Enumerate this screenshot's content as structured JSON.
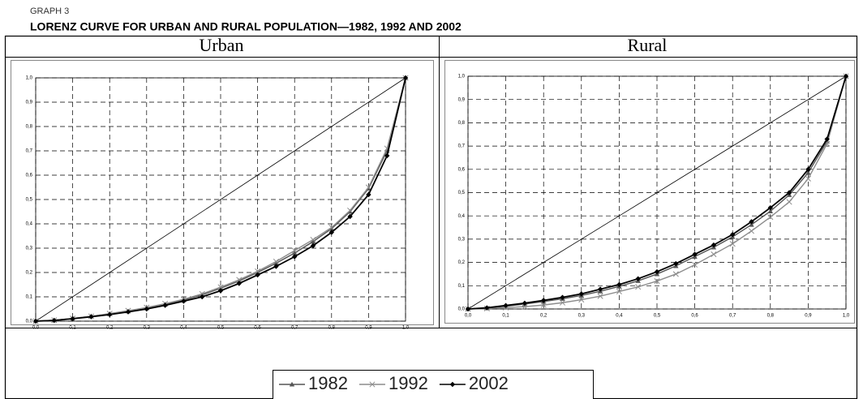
{
  "header": {
    "label": "GRAPH 3",
    "title": "LORENZ CURVE FOR URBAN AND RURAL POPULATION—1982, 1992 AND 2002"
  },
  "chart_data": [
    {
      "type": "line",
      "title": "Urban",
      "grid": true,
      "x": [
        0,
        0.05,
        0.1,
        0.15,
        0.2,
        0.25,
        0.3,
        0.35,
        0.4,
        0.45,
        0.5,
        0.55,
        0.6,
        0.65,
        0.7,
        0.75,
        0.8,
        0.85,
        0.9,
        0.95,
        1
      ],
      "xlim": [
        0,
        1
      ],
      "ylim": [
        0,
        1
      ],
      "xticks": [
        {
          "value": 0,
          "label": "0,0"
        },
        {
          "value": 0.1,
          "label": "0,1"
        },
        {
          "value": 0.2,
          "label": "0,2"
        },
        {
          "value": 0.3,
          "label": "0,3"
        },
        {
          "value": 0.4,
          "label": "0,4"
        },
        {
          "value": 0.5,
          "label": "0,5"
        },
        {
          "value": 0.6,
          "label": "0,6"
        },
        {
          "value": 0.7,
          "label": "0,7"
        },
        {
          "value": 0.8,
          "label": "0,8"
        },
        {
          "value": 0.9,
          "label": "0,9"
        },
        {
          "value": 1,
          "label": "1,0"
        }
      ],
      "yticks": [
        {
          "value": 0,
          "label": "0,0"
        },
        {
          "value": 0.1,
          "label": "0,1"
        },
        {
          "value": 0.2,
          "label": "0,2"
        },
        {
          "value": 0.3,
          "label": "0,3"
        },
        {
          "value": 0.4,
          "label": "0,4"
        },
        {
          "value": 0.5,
          "label": "0,5"
        },
        {
          "value": 0.6,
          "label": "0,6"
        },
        {
          "value": 0.7,
          "label": "0,7"
        },
        {
          "value": 0.8,
          "label": "0,8"
        },
        {
          "value": 0.9,
          "label": "0,9"
        },
        {
          "value": 1,
          "label": "1,0"
        }
      ],
      "series": [
        {
          "name": "1982",
          "color": "#555555",
          "marker": "triangle",
          "values": [
            0,
            0.004,
            0.011,
            0.02,
            0.03,
            0.041,
            0.054,
            0.069,
            0.087,
            0.108,
            0.135,
            0.165,
            0.2,
            0.238,
            0.28,
            0.327,
            0.38,
            0.45,
            0.545,
            0.7,
            1
          ]
        },
        {
          "name": "1992",
          "color": "#8c8c8c",
          "marker": "cross",
          "values": [
            0,
            0.004,
            0.011,
            0.02,
            0.031,
            0.043,
            0.056,
            0.072,
            0.09,
            0.112,
            0.14,
            0.17,
            0.205,
            0.245,
            0.29,
            0.335,
            0.385,
            0.455,
            0.55,
            0.71,
            1
          ]
        },
        {
          "name": "2002",
          "color": "#000000",
          "marker": "diamond",
          "values": [
            0,
            0.003,
            0.01,
            0.018,
            0.027,
            0.038,
            0.05,
            0.065,
            0.082,
            0.1,
            0.125,
            0.155,
            0.19,
            0.225,
            0.265,
            0.31,
            0.365,
            0.43,
            0.52,
            0.68,
            1
          ]
        }
      ]
    },
    {
      "type": "line",
      "title": "Rural",
      "grid": true,
      "x": [
        0,
        0.05,
        0.1,
        0.15,
        0.2,
        0.25,
        0.3,
        0.35,
        0.4,
        0.45,
        0.5,
        0.55,
        0.6,
        0.65,
        0.7,
        0.75,
        0.8,
        0.85,
        0.9,
        0.95,
        1
      ],
      "xlim": [
        0,
        1
      ],
      "ylim": [
        0,
        1
      ],
      "xticks": [
        {
          "value": 0,
          "label": "0,0"
        },
        {
          "value": 0.1,
          "label": "0,1"
        },
        {
          "value": 0.2,
          "label": "0,2"
        },
        {
          "value": 0.3,
          "label": "0,3"
        },
        {
          "value": 0.4,
          "label": "0,4"
        },
        {
          "value": 0.5,
          "label": "0,5"
        },
        {
          "value": 0.6,
          "label": "0,6"
        },
        {
          "value": 0.7,
          "label": "0,7"
        },
        {
          "value": 0.8,
          "label": "0,8"
        },
        {
          "value": 0.9,
          "label": "0,9"
        },
        {
          "value": 1,
          "label": "1,0"
        }
      ],
      "yticks": [
        {
          "value": 0,
          "label": "0,0"
        },
        {
          "value": 0.1,
          "label": "0,1"
        },
        {
          "value": 0.2,
          "label": "0,2"
        },
        {
          "value": 0.3,
          "label": "0,3"
        },
        {
          "value": 0.4,
          "label": "0,4"
        },
        {
          "value": 0.5,
          "label": "0,5"
        },
        {
          "value": 0.6,
          "label": "0,6"
        },
        {
          "value": 0.7,
          "label": "0,7"
        },
        {
          "value": 0.8,
          "label": "0,8"
        },
        {
          "value": 0.9,
          "label": "0,9"
        },
        {
          "value": 1,
          "label": "1,0"
        }
      ],
      "series": [
        {
          "name": "1982",
          "color": "#555555",
          "marker": "triangle",
          "values": [
            0,
            0.004,
            0.012,
            0.021,
            0.032,
            0.044,
            0.058,
            0.076,
            0.097,
            0.121,
            0.15,
            0.185,
            0.225,
            0.265,
            0.31,
            0.362,
            0.42,
            0.49,
            0.585,
            0.72,
            1
          ]
        },
        {
          "name": "1992",
          "color": "#8c8c8c",
          "marker": "cross",
          "values": [
            0,
            0.002,
            0.006,
            0.01,
            0.017,
            0.027,
            0.04,
            0.055,
            0.075,
            0.095,
            0.12,
            0.15,
            0.19,
            0.235,
            0.28,
            0.335,
            0.395,
            0.46,
            0.56,
            0.71,
            1
          ]
        },
        {
          "name": "2002",
          "color": "#000000",
          "marker": "diamond",
          "values": [
            0,
            0.005,
            0.015,
            0.025,
            0.037,
            0.05,
            0.065,
            0.085,
            0.105,
            0.13,
            0.16,
            0.195,
            0.235,
            0.275,
            0.32,
            0.375,
            0.435,
            0.5,
            0.6,
            0.73,
            1
          ]
        }
      ]
    }
  ]
}
